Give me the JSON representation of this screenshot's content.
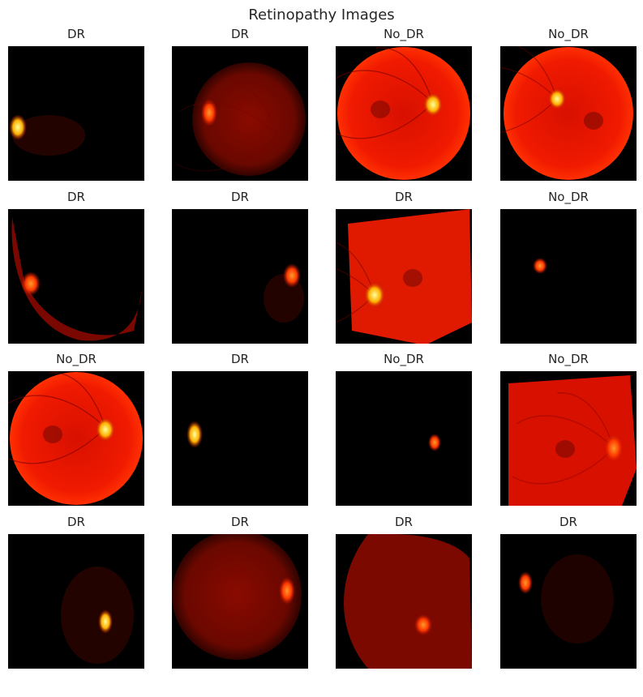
{
  "figure": {
    "title": "Retinopathy Images",
    "panels": [
      {
        "label": "DR",
        "view": "dark-disc-left"
      },
      {
        "label": "DR",
        "view": "dim-disc-left"
      },
      {
        "label": "No_DR",
        "view": "full-fundus-disc-right"
      },
      {
        "label": "No_DR",
        "view": "full-fundus-disc-center"
      },
      {
        "label": "DR",
        "view": "crescent-left"
      },
      {
        "label": "DR",
        "view": "dark-disc-right"
      },
      {
        "label": "DR",
        "view": "tilted-fundus"
      },
      {
        "label": "No_DR",
        "view": "dark-small-spot"
      },
      {
        "label": "No_DR",
        "view": "full-fundus-disc-right"
      },
      {
        "label": "DR",
        "view": "dark-disc-left-bright"
      },
      {
        "label": "No_DR",
        "view": "dark-small-spot-right"
      },
      {
        "label": "No_DR",
        "view": "full-fundus-cropped-right"
      },
      {
        "label": "DR",
        "view": "dark-disc-center"
      },
      {
        "label": "DR",
        "view": "dim-fundus-disc-right"
      },
      {
        "label": "DR",
        "view": "crescent-disc-bottom"
      },
      {
        "label": "DR",
        "view": "dark-disc-left-dim"
      }
    ]
  }
}
